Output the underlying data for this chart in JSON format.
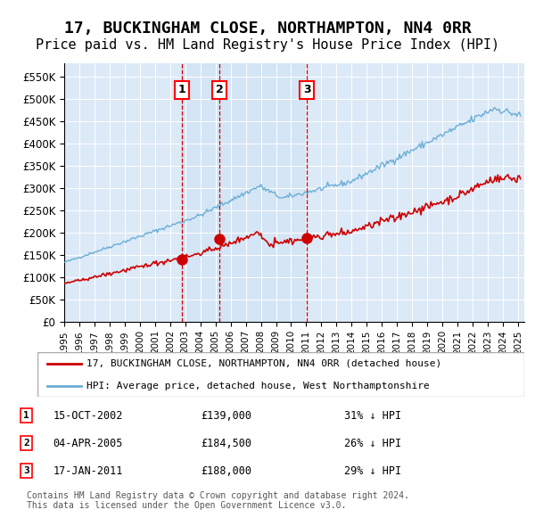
{
  "title": "17, BUCKINGHAM CLOSE, NORTHAMPTON, NN4 0RR",
  "subtitle": "Price paid vs. HM Land Registry's House Price Index (HPI)",
  "title_fontsize": 13,
  "subtitle_fontsize": 11,
  "background_color": "#dce9f7",
  "plot_bg_color": "#dce9f7",
  "ylim": [
    0,
    580000
  ],
  "yticks": [
    0,
    50000,
    100000,
    150000,
    200000,
    250000,
    300000,
    350000,
    400000,
    450000,
    500000,
    550000
  ],
  "ytick_labels": [
    "£0",
    "£50K",
    "£100K",
    "£150K",
    "£200K",
    "£250K",
    "£300K",
    "£350K",
    "£400K",
    "£450K",
    "£500K",
    "£550K"
  ],
  "hpi_color": "#6baed6",
  "price_color": "#cc0000",
  "vline_color": "#cc0000",
  "sale_marker_color": "#cc0000",
  "purchases": [
    {
      "date": "2002-10-15",
      "price": 139000,
      "label": "1"
    },
    {
      "date": "2005-04-04",
      "price": 184500,
      "label": "2"
    },
    {
      "date": "2011-01-17",
      "price": 188000,
      "label": "3"
    }
  ],
  "table_data": [
    [
      "1",
      "15-OCT-2002",
      "£139,000",
      "31% ↓ HPI"
    ],
    [
      "2",
      "04-APR-2005",
      "£184,500",
      "26% ↓ HPI"
    ],
    [
      "3",
      "17-JAN-2011",
      "£188,000",
      "29% ↓ HPI"
    ]
  ],
  "legend_entries": [
    "17, BUCKINGHAM CLOSE, NORTHAMPTON, NN4 0RR (detached house)",
    "HPI: Average price, detached house, West Northamptonshire"
  ],
  "footer": "Contains HM Land Registry data © Crown copyright and database right 2024.\nThis data is licensed under the Open Government Licence v3.0.",
  "xstart_year": 1995,
  "xend_year": 2025
}
